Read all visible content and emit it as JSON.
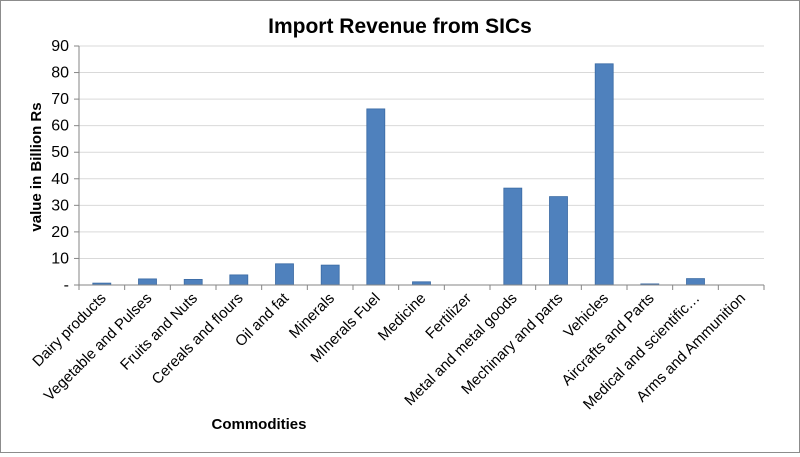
{
  "chart_data": {
    "type": "bar",
    "title": "Import Revenue from SICs",
    "xlabel": "Commodities",
    "ylabel": "value in Billion Rs",
    "ylim": [
      0,
      90
    ],
    "yticks": [
      "-",
      "10",
      "20",
      "30",
      "40",
      "50",
      "60",
      "70",
      "80",
      "90"
    ],
    "grid": true,
    "legend": "none",
    "categories": [
      "Dairy products",
      "Vegetable and Pulses",
      "Fruits and Nuts",
      "Cereals  and flours",
      "Oil and fat",
      "Minerals",
      "MInerals Fuel",
      "Medicine",
      "Fertilizer",
      "Metal  and metal goods",
      "Mechinary and parts",
      "Vehicles",
      "Aircrafts and Parts",
      "Medical and scientific…",
      "Arms and Ammunition"
    ],
    "values": [
      0.7,
      2.3,
      2.1,
      3.8,
      8.0,
      7.5,
      66.3,
      1.2,
      0,
      36.5,
      33.3,
      83.3,
      0.4,
      2.4,
      0
    ],
    "bar_color": "#4f81bd",
    "bar_edge_color": "#3a6aa3",
    "grid_color": "#d9d9d9"
  }
}
